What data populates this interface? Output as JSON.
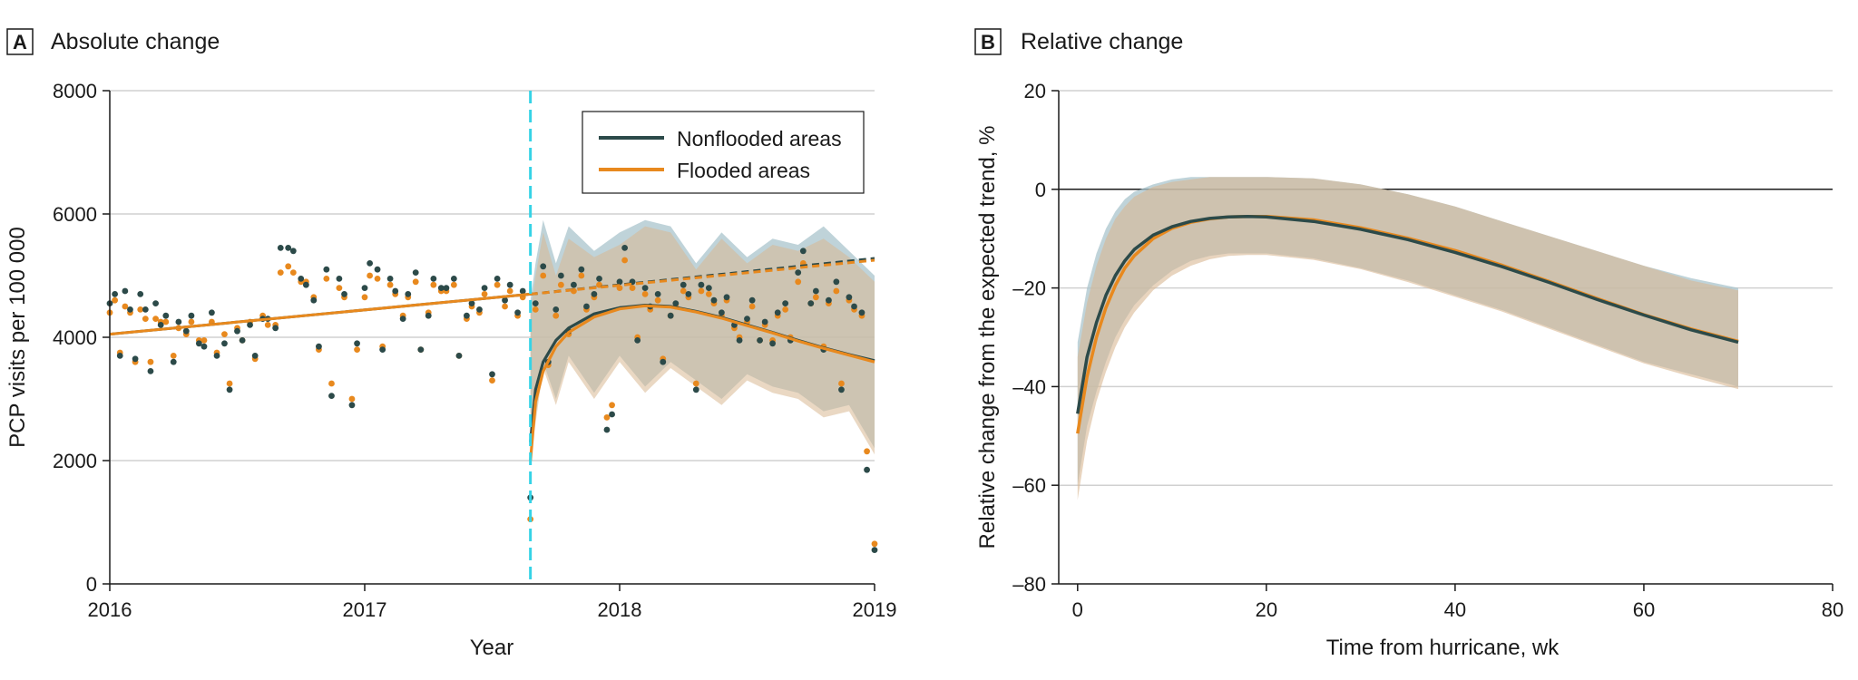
{
  "colors": {
    "nonflooded": "#2c4a49",
    "flooded": "#e8891e",
    "hurricane_line": "#36d3e6",
    "ci_nonflooded": "#a9c4cc",
    "ci_flooded": "#d8b892",
    "ci_overlap": "#b9b49a",
    "grid": "#d0d0d0"
  },
  "chart_data": [
    {
      "id": "A",
      "panel_label": "A",
      "title": "Absolute change",
      "type": "scatter",
      "xlabel": "Year",
      "ylabel": "PCP visits per 100 000",
      "xlim": [
        2016,
        2019
      ],
      "ylim": [
        0,
        8000
      ],
      "xticks": [
        "2016",
        "2017",
        "2018",
        "2019"
      ],
      "yticks": [
        "0",
        "2000",
        "4000",
        "6000",
        "8000"
      ],
      "hurricane_year": 2017.65,
      "legend": {
        "position": "top-right",
        "entries": [
          "Nonflooded areas",
          "Flooded areas"
        ]
      },
      "series": [
        {
          "name": "Nonflooded areas",
          "points_x": [
            2016.0,
            2016.02,
            2016.04,
            2016.06,
            2016.08,
            2016.1,
            2016.12,
            2016.14,
            2016.16,
            2016.18,
            2016.2,
            2016.22,
            2016.25,
            2016.27,
            2016.3,
            2016.32,
            2016.35,
            2016.37,
            2016.4,
            2016.42,
            2016.45,
            2016.47,
            2016.5,
            2016.52,
            2016.55,
            2016.57,
            2016.6,
            2016.62,
            2016.65,
            2016.67,
            2016.7,
            2016.72,
            2016.75,
            2016.77,
            2016.8,
            2016.82,
            2016.85,
            2016.87,
            2016.9,
            2016.92,
            2016.95,
            2016.97,
            2017.0,
            2017.02,
            2017.05,
            2017.07,
            2017.1,
            2017.12,
            2017.15,
            2017.17,
            2017.2,
            2017.22,
            2017.25,
            2017.27,
            2017.3,
            2017.32,
            2017.35,
            2017.37,
            2017.4,
            2017.42,
            2017.45,
            2017.47,
            2017.5,
            2017.52,
            2017.55,
            2017.57,
            2017.6,
            2017.62,
            2017.65,
            2017.67,
            2017.7,
            2017.72,
            2017.75,
            2017.77,
            2017.8,
            2017.82,
            2017.85,
            2017.87,
            2017.9,
            2017.92,
            2017.95,
            2017.97,
            2018.0,
            2018.02,
            2018.05,
            2018.07,
            2018.1,
            2018.12,
            2018.15,
            2018.17,
            2018.2,
            2018.22,
            2018.25,
            2018.27,
            2018.3,
            2018.32,
            2018.35,
            2018.37,
            2018.4,
            2018.42,
            2018.45,
            2018.47,
            2018.5,
            2018.52,
            2018.55,
            2018.57,
            2018.6,
            2018.62,
            2018.65,
            2018.67,
            2018.7,
            2018.72,
            2018.75,
            2018.77,
            2018.8,
            2018.82,
            2018.85,
            2018.87,
            2018.9,
            2018.92,
            2018.95,
            2018.97,
            2019.0
          ],
          "points_y": [
            4550,
            4700,
            3700,
            4750,
            4450,
            3650,
            4700,
            4450,
            3450,
            4550,
            4200,
            4350,
            3600,
            4250,
            4100,
            4350,
            3900,
            3850,
            4400,
            3700,
            3900,
            3150,
            4100,
            3950,
            4200,
            3700,
            4300,
            4300,
            4150,
            5450,
            5450,
            5400,
            4950,
            4850,
            4600,
            3850,
            5100,
            3050,
            4950,
            4700,
            2900,
            3900,
            4800,
            5200,
            5100,
            3800,
            4950,
            4750,
            4300,
            4700,
            5050,
            3800,
            4350,
            4950,
            4800,
            4800,
            4950,
            3700,
            4350,
            4550,
            4450,
            4800,
            3400,
            4950,
            4600,
            4850,
            4400,
            4750,
            1400,
            4550,
            5150,
            3600,
            4450,
            5000,
            4100,
            4850,
            5100,
            4500,
            4700,
            4950,
            2500,
            2750,
            4900,
            5450,
            4900,
            3950,
            4800,
            4500,
            4700,
            3600,
            4350,
            4550,
            4850,
            4700,
            3150,
            4850,
            4800,
            4600,
            4400,
            4650,
            4200,
            3950,
            4300,
            4600,
            3950,
            4250,
            3900,
            4400,
            4550,
            3950,
            5050,
            5400,
            4550,
            4750,
            3800,
            4600,
            4900,
            3150,
            4650,
            4500,
            4400,
            1850,
            550
          ],
          "trend_pre_x": [
            2016.0,
            2017.65
          ],
          "trend_pre_y": [
            4050,
            4700
          ],
          "counterfactual_x": [
            2017.65,
            2019.0
          ],
          "counterfactual_y": [
            4700,
            5280
          ],
          "fit_x": [
            2017.65,
            2017.67,
            2017.7,
            2017.75,
            2017.8,
            2017.9,
            2018.0,
            2018.1,
            2018.2,
            2018.3,
            2018.4,
            2018.5,
            2018.6,
            2018.7,
            2018.8,
            2018.9,
            2019.0
          ],
          "fit_y": [
            2300,
            3150,
            3600,
            3950,
            4150,
            4380,
            4480,
            4520,
            4500,
            4420,
            4320,
            4200,
            4080,
            3950,
            3830,
            3720,
            3620
          ],
          "ci_upper": [
            4600,
            5200,
            5900,
            5200,
            5800,
            5400,
            5700,
            5900,
            5800,
            5200,
            5700,
            5300,
            5600,
            5500,
            5800,
            5400,
            5000
          ],
          "ci_lower": [
            2200,
            2700,
            3600,
            3000,
            3700,
            3100,
            3700,
            3200,
            3600,
            3300,
            3000,
            3400,
            3200,
            3100,
            2800,
            2900,
            2200
          ]
        },
        {
          "name": "Flooded areas",
          "points_x": [
            2016.0,
            2016.02,
            2016.04,
            2016.06,
            2016.08,
            2016.1,
            2016.12,
            2016.14,
            2016.16,
            2016.18,
            2016.2,
            2016.22,
            2016.25,
            2016.27,
            2016.3,
            2016.32,
            2016.35,
            2016.37,
            2016.4,
            2016.42,
            2016.45,
            2016.47,
            2016.5,
            2016.52,
            2016.55,
            2016.57,
            2016.6,
            2016.62,
            2016.65,
            2016.67,
            2016.7,
            2016.72,
            2016.75,
            2016.77,
            2016.8,
            2016.82,
            2016.85,
            2016.87,
            2016.9,
            2016.92,
            2016.95,
            2016.97,
            2017.0,
            2017.02,
            2017.05,
            2017.07,
            2017.1,
            2017.12,
            2017.15,
            2017.17,
            2017.2,
            2017.22,
            2017.25,
            2017.27,
            2017.3,
            2017.32,
            2017.35,
            2017.37,
            2017.4,
            2017.42,
            2017.45,
            2017.47,
            2017.5,
            2017.52,
            2017.55,
            2017.57,
            2017.6,
            2017.62,
            2017.65,
            2017.67,
            2017.7,
            2017.72,
            2017.75,
            2017.77,
            2017.8,
            2017.82,
            2017.85,
            2017.87,
            2017.9,
            2017.92,
            2017.95,
            2017.97,
            2018.0,
            2018.02,
            2018.05,
            2018.07,
            2018.1,
            2018.12,
            2018.15,
            2018.17,
            2018.2,
            2018.22,
            2018.25,
            2018.27,
            2018.3,
            2018.32,
            2018.35,
            2018.37,
            2018.4,
            2018.42,
            2018.45,
            2018.47,
            2018.5,
            2018.52,
            2018.55,
            2018.57,
            2018.6,
            2018.62,
            2018.65,
            2018.67,
            2018.7,
            2018.72,
            2018.75,
            2018.77,
            2018.8,
            2018.82,
            2018.85,
            2018.87,
            2018.9,
            2018.92,
            2018.95,
            2018.97,
            2019.0
          ],
          "points_y": [
            4400,
            4600,
            3750,
            4500,
            4400,
            3600,
            4450,
            4300,
            3600,
            4300,
            4250,
            4250,
            3700,
            4150,
            4050,
            4250,
            3950,
            3950,
            4250,
            3750,
            4050,
            3250,
            4150,
            3950,
            4250,
            3650,
            4350,
            4200,
            4200,
            5050,
            5150,
            5050,
            4900,
            4900,
            4650,
            3800,
            4950,
            3250,
            4800,
            4650,
            3000,
            3800,
            4650,
            5000,
            4950,
            3850,
            4850,
            4700,
            4350,
            4650,
            4900,
            3800,
            4400,
            4850,
            4750,
            4750,
            4850,
            3700,
            4300,
            4500,
            4400,
            4700,
            3300,
            4850,
            4500,
            4750,
            4350,
            4650,
            1050,
            4450,
            5000,
            3550,
            4350,
            4850,
            4050,
            4750,
            5000,
            4450,
            4650,
            4850,
            2700,
            2900,
            4800,
            5250,
            4800,
            4000,
            4700,
            4450,
            4600,
            3650,
            4350,
            4500,
            4750,
            4650,
            3250,
            4750,
            4700,
            4550,
            4350,
            4600,
            4150,
            4000,
            4250,
            4500,
            3950,
            4200,
            3950,
            4350,
            4450,
            4000,
            4900,
            5200,
            4550,
            4650,
            3850,
            4550,
            4750,
            3250,
            4600,
            4450,
            4350,
            2150,
            650
          ],
          "trend_pre_x": [
            2016.0,
            2017.65
          ],
          "trend_pre_y": [
            4050,
            4700
          ],
          "counterfactual_x": [
            2017.65,
            2019.0
          ],
          "counterfactual_y": [
            4700,
            5250
          ],
          "fit_x": [
            2017.65,
            2017.67,
            2017.7,
            2017.75,
            2017.8,
            2017.9,
            2018.0,
            2018.1,
            2018.2,
            2018.3,
            2018.4,
            2018.5,
            2018.6,
            2018.7,
            2018.8,
            2018.9,
            2019.0
          ],
          "fit_y": [
            2000,
            2950,
            3450,
            3850,
            4080,
            4330,
            4460,
            4510,
            4490,
            4410,
            4310,
            4190,
            4070,
            3940,
            3820,
            3710,
            3600
          ],
          "ci_upper": [
            4400,
            5000,
            5700,
            5000,
            5600,
            5300,
            5500,
            5800,
            5700,
            5100,
            5600,
            5200,
            5500,
            5400,
            5600,
            5300,
            4900
          ],
          "ci_lower": [
            2100,
            2600,
            3500,
            2900,
            3600,
            3000,
            3600,
            3100,
            3500,
            3200,
            2900,
            3300,
            3100,
            3000,
            2700,
            2800,
            2100
          ]
        }
      ]
    },
    {
      "id": "B",
      "panel_label": "B",
      "title": "Relative change",
      "type": "line",
      "xlabel": "Time from hurricane, wk",
      "ylabel": "Relative change from the expected trend, %",
      "xlim": [
        -2,
        80
      ],
      "ylim": [
        -80,
        20
      ],
      "xticks": [
        "0",
        "20",
        "40",
        "60",
        "80"
      ],
      "yticks": [
        "20",
        "0",
        "–20",
        "–40",
        "–60",
        "–80"
      ],
      "series": [
        {
          "name": "Nonflooded areas",
          "x": [
            0,
            1,
            2,
            3,
            4,
            5,
            6,
            8,
            10,
            12,
            14,
            16,
            18,
            20,
            25,
            30,
            35,
            40,
            45,
            50,
            55,
            60,
            65,
            70
          ],
          "y": [
            -45.5,
            -34,
            -27,
            -21.5,
            -17.5,
            -14.5,
            -12.2,
            -9.3,
            -7.6,
            -6.5,
            -5.9,
            -5.6,
            -5.5,
            -5.6,
            -6.5,
            -8.1,
            -10.2,
            -12.8,
            -15.7,
            -18.9,
            -22.3,
            -25.5,
            -28.5,
            -31
          ],
          "ci_upper": [
            -31,
            -20,
            -13,
            -8,
            -4.5,
            -2,
            -0.5,
            1,
            2,
            2.5,
            2.5,
            2.5,
            2.5,
            2.5,
            2.2,
            1,
            -1,
            -3.5,
            -6.5,
            -9.5,
            -12.5,
            -15.5,
            -18,
            -20
          ],
          "ci_lower": [
            -60,
            -48,
            -41,
            -35,
            -30,
            -26.5,
            -23.5,
            -19.5,
            -16.5,
            -14.5,
            -13.5,
            -13,
            -13,
            -13,
            -14,
            -16,
            -18.5,
            -21.5,
            -24.5,
            -28,
            -31.5,
            -35,
            -37.5,
            -40
          ]
        },
        {
          "name": "Flooded areas",
          "x": [
            0,
            1,
            2,
            3,
            4,
            5,
            6,
            8,
            10,
            12,
            14,
            16,
            18,
            20,
            25,
            30,
            35,
            40,
            45,
            50,
            55,
            60,
            65,
            70
          ],
          "y": [
            -49.5,
            -38,
            -30,
            -24,
            -19.5,
            -16,
            -13.5,
            -10,
            -7.9,
            -6.7,
            -6,
            -5.6,
            -5.5,
            -5.5,
            -6.2,
            -7.8,
            -9.9,
            -12.4,
            -15.4,
            -18.7,
            -22.1,
            -25.4,
            -28.3,
            -30.8
          ],
          "ci_upper": [
            -34,
            -23,
            -15.5,
            -10,
            -6,
            -3.5,
            -1.5,
            0.5,
            1.5,
            2,
            2.5,
            2.5,
            2.5,
            2.5,
            2.2,
            1,
            -1,
            -3.5,
            -6.5,
            -9.5,
            -12.5,
            -15.5,
            -18.5,
            -20.5
          ],
          "ci_lower": [
            -63,
            -51,
            -43,
            -37,
            -32,
            -28,
            -25,
            -20.5,
            -17.5,
            -15.5,
            -14.2,
            -13.5,
            -13.3,
            -13.3,
            -14.3,
            -16.2,
            -18.8,
            -21.8,
            -24.8,
            -28.3,
            -31.8,
            -35.3,
            -38,
            -40.5
          ]
        }
      ]
    }
  ]
}
